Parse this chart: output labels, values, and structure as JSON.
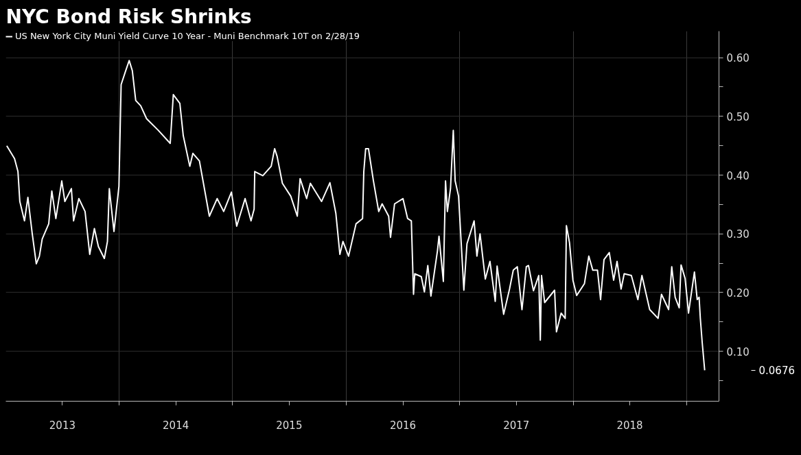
{
  "chart_data": {
    "type": "line",
    "title": "NYC Bond Risk Shrinks",
    "x": [
      "2013-01-04",
      "2013-01-29",
      "2013-02-09",
      "2013-02-15",
      "2013-03-02",
      "2013-03-13",
      "2013-03-27",
      "2013-04-09",
      "2013-04-19",
      "2013-04-28",
      "2013-05-19",
      "2013-05-29",
      "2013-06-11",
      "2013-06-30",
      "2013-07-10",
      "2013-07-31",
      "2013-08-07",
      "2013-08-24",
      "2013-09-13",
      "2013-09-28",
      "2013-10-13",
      "2013-10-26",
      "2013-11-14",
      "2013-11-24",
      "2013-11-30",
      "2013-12-15",
      "2013-12-31",
      "2014-01-07",
      "2014-01-22",
      "2014-02-02",
      "2014-02-12",
      "2014-02-23",
      "2014-03-11",
      "2014-03-30",
      "2014-05-07",
      "2014-06-14",
      "2014-06-24",
      "2014-07-15",
      "2014-07-26",
      "2014-08-16",
      "2014-08-26",
      "2014-09-16",
      "2014-10-18",
      "2014-11-12",
      "2014-12-03",
      "2014-12-28",
      "2015-01-14",
      "2015-02-10",
      "2015-03-01",
      "2015-03-11",
      "2015-03-13",
      "2015-04-08",
      "2015-05-05",
      "2015-05-16",
      "2015-05-24",
      "2015-06-10",
      "2015-07-07",
      "2015-07-28",
      "2015-08-06",
      "2015-08-27",
      "2015-09-08",
      "2015-10-14",
      "2015-11-10",
      "2015-11-29",
      "2015-12-12",
      "2015-12-22",
      "2016-01-09",
      "2016-02-02",
      "2016-02-23",
      "2016-02-27",
      "2016-03-04",
      "2016-03-13",
      "2016-03-29",
      "2016-04-15",
      "2016-04-26",
      "2016-05-17",
      "2016-05-23",
      "2016-06-05",
      "2016-07-02",
      "2016-07-17",
      "2016-07-29",
      "2016-08-05",
      "2016-08-09",
      "2016-08-30",
      "2016-09-09",
      "2016-09-20",
      "2016-09-30",
      "2016-10-21",
      "2016-10-26",
      "2016-11-09",
      "2016-11-16",
      "2016-11-22",
      "2016-12-02",
      "2016-12-11",
      "2016-12-17",
      "2016-12-28",
      "2017-01-14",
      "2017-01-24",
      "2017-02-16",
      "2017-02-25",
      "2017-03-07",
      "2017-03-24",
      "2017-04-08",
      "2017-04-25",
      "2017-05-01",
      "2017-05-22",
      "2017-06-10",
      "2017-06-22",
      "2017-07-05",
      "2017-07-20",
      "2017-08-03",
      "2017-08-10",
      "2017-08-26",
      "2017-09-12",
      "2017-09-17",
      "2017-09-21",
      "2017-10-01",
      "2017-11-02",
      "2017-11-08",
      "2017-11-23",
      "2017-12-06",
      "2017-12-10",
      "2017-12-20",
      "2017-12-31",
      "2018-01-12",
      "2018-02-06",
      "2018-02-20",
      "2018-03-05",
      "2018-03-20",
      "2018-03-30",
      "2018-04-10",
      "2018-04-27",
      "2018-05-11",
      "2018-05-22",
      "2018-06-04",
      "2018-06-14",
      "2018-07-07",
      "2018-07-28",
      "2018-08-10",
      "2018-09-04",
      "2018-10-01",
      "2018-10-12",
      "2018-11-04",
      "2018-11-14",
      "2018-11-25",
      "2018-12-08",
      "2018-12-14",
      "2018-12-27",
      "2019-01-07",
      "2019-01-26",
      "2019-02-04",
      "2019-02-10",
      "2019-02-14",
      "2019-02-20",
      "2019-02-28"
    ],
    "series": [
      {
        "name": "US New York City Muni Yield Curve 10 Year - Muni Benchmark 10T on 2/28/19",
        "color": "#ffffff",
        "values": [
          0.45,
          0.428,
          0.406,
          0.355,
          0.322,
          0.362,
          0.3,
          0.249,
          0.262,
          0.291,
          0.317,
          0.373,
          0.326,
          0.39,
          0.355,
          0.377,
          0.322,
          0.36,
          0.338,
          0.265,
          0.309,
          0.278,
          0.258,
          0.287,
          0.377,
          0.304,
          0.381,
          0.554,
          0.578,
          0.595,
          0.578,
          0.527,
          0.518,
          0.496,
          0.476,
          0.454,
          0.537,
          0.522,
          0.467,
          0.415,
          0.437,
          0.424,
          0.33,
          0.36,
          0.338,
          0.371,
          0.313,
          0.36,
          0.322,
          0.342,
          0.406,
          0.399,
          0.415,
          0.445,
          0.432,
          0.386,
          0.364,
          0.33,
          0.394,
          0.36,
          0.386,
          0.355,
          0.387,
          0.335,
          0.265,
          0.287,
          0.262,
          0.317,
          0.326,
          0.406,
          0.445,
          0.445,
          0.39,
          0.338,
          0.351,
          0.33,
          0.294,
          0.351,
          0.36,
          0.326,
          0.322,
          0.197,
          0.232,
          0.227,
          0.201,
          0.246,
          0.194,
          0.271,
          0.296,
          0.219,
          0.39,
          0.338,
          0.377,
          0.476,
          0.39,
          0.364,
          0.204,
          0.283,
          0.322,
          0.262,
          0.3,
          0.223,
          0.253,
          0.185,
          0.245,
          0.163,
          0.206,
          0.238,
          0.244,
          0.171,
          0.244,
          0.246,
          0.203,
          0.229,
          0.119,
          0.229,
          0.183,
          0.204,
          0.133,
          0.165,
          0.156,
          0.314,
          0.285,
          0.221,
          0.195,
          0.215,
          0.262,
          0.238,
          0.238,
          0.188,
          0.256,
          0.268,
          0.221,
          0.253,
          0.206,
          0.232,
          0.229,
          0.188,
          0.229,
          0.171,
          0.156,
          0.197,
          0.171,
          0.244,
          0.192,
          0.174,
          0.247,
          0.224,
          0.165,
          0.235,
          0.188,
          0.192,
          0.156,
          0.115,
          0.0676
        ]
      }
    ],
    "annotations": [
      "0.0676"
    ],
    "xlim": [
      "2013-01-01",
      "2019-04-15"
    ],
    "xticks": [
      {
        "value": "2013-07-02",
        "label": "2013"
      },
      {
        "value": "2014-07-02",
        "label": "2014"
      },
      {
        "value": "2015-07-02",
        "label": "2015"
      },
      {
        "value": "2016-07-02",
        "label": "2016"
      },
      {
        "value": "2017-07-02",
        "label": "2017"
      },
      {
        "value": "2018-07-02",
        "label": "2018"
      },
      {
        "value": "2014-01-01",
        "label": null
      },
      {
        "value": "2015-01-01",
        "label": null
      },
      {
        "value": "2016-01-01",
        "label": null
      },
      {
        "value": "2017-01-01",
        "label": null
      },
      {
        "value": "2018-01-01",
        "label": null
      },
      {
        "value": "2019-01-01",
        "label": null
      }
    ],
    "ylim": [
      0.015,
      0.645
    ],
    "yticks": [
      {
        "value": 0.1,
        "label": "0.10"
      },
      {
        "value": 0.2,
        "label": "0.20"
      },
      {
        "value": 0.3,
        "label": "0.30"
      },
      {
        "value": 0.4,
        "label": "0.40"
      },
      {
        "value": 0.5,
        "label": "0.50"
      },
      {
        "value": 0.6,
        "label": "0.60"
      },
      {
        "value": 0.05,
        "label": null
      },
      {
        "value": 0.15,
        "label": null
      },
      {
        "value": 0.25,
        "label": null
      },
      {
        "value": 0.35,
        "label": null
      },
      {
        "value": 0.45,
        "label": null
      },
      {
        "value": 0.55,
        "label": null
      }
    ],
    "grid": true,
    "legend": "top left",
    "line_style": "solid",
    "marker": "none"
  }
}
